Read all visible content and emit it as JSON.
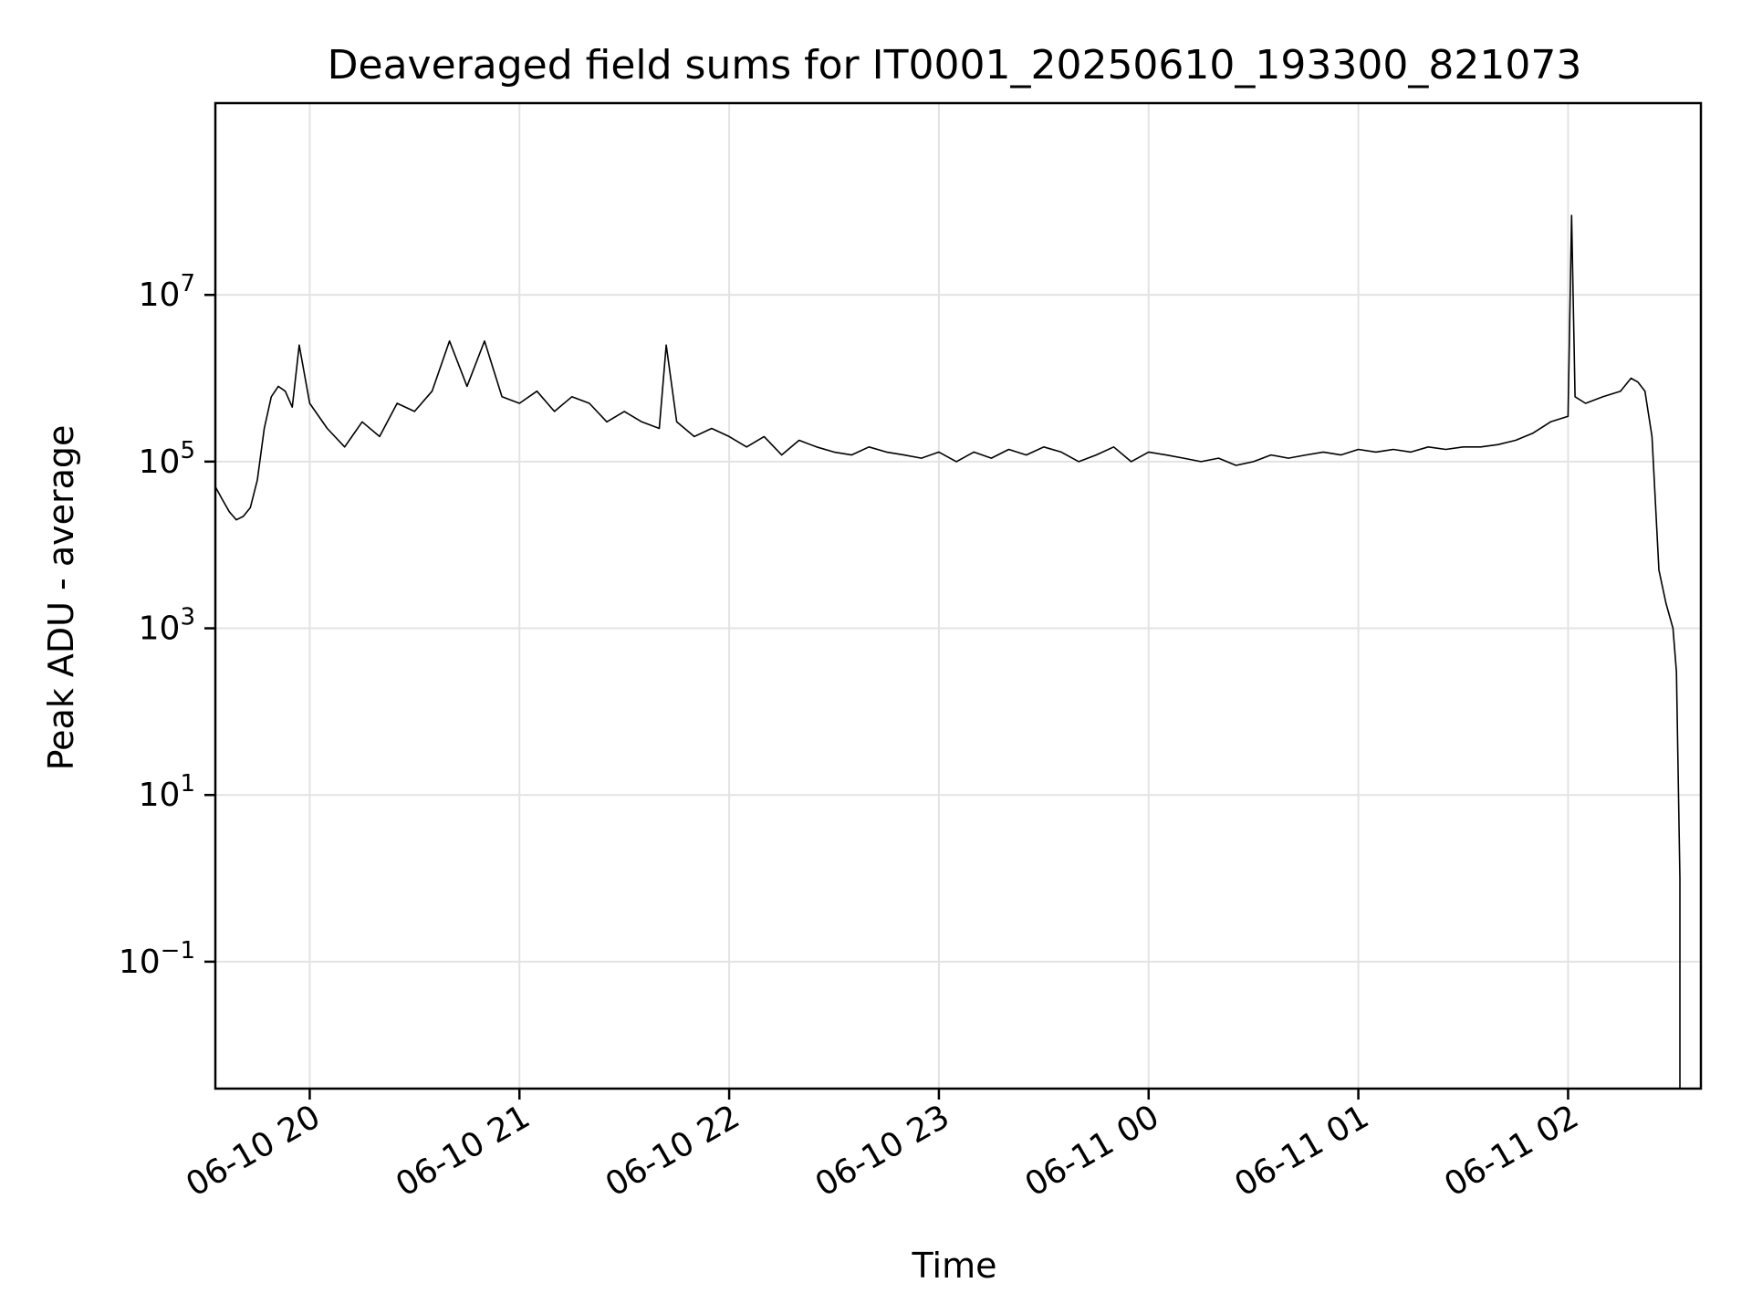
{
  "chart_data": {
    "type": "line",
    "title": "Deaveraged field sums for IT0001_20250610_193300_821073",
    "xlabel": "Time",
    "ylabel": "Peak ADU - average",
    "yscale": "log",
    "grid": true,
    "line_color": "#000000",
    "x_range": [
      "2025-06-10 19:33",
      "2025-06-11 02:38"
    ],
    "ylim": [
      0.003,
      2000000000
    ],
    "x_ticks": [
      {
        "label": "06-10 20",
        "time": "2025-06-10 20:00"
      },
      {
        "label": "06-10 21",
        "time": "2025-06-10 21:00"
      },
      {
        "label": "06-10 22",
        "time": "2025-06-10 22:00"
      },
      {
        "label": "06-10 23",
        "time": "2025-06-10 23:00"
      },
      {
        "label": "06-11 00",
        "time": "2025-06-11 00:00"
      },
      {
        "label": "06-11 01",
        "time": "2025-06-11 01:00"
      },
      {
        "label": "06-11 02",
        "time": "2025-06-11 02:00"
      }
    ],
    "y_ticks": [
      {
        "base": "10",
        "exp": "7",
        "value": 10000000
      },
      {
        "base": "10",
        "exp": "5",
        "value": 100000
      },
      {
        "base": "10",
        "exp": "3",
        "value": 1000
      },
      {
        "base": "10",
        "exp": "1",
        "value": 10
      },
      {
        "base": "10",
        "exp": "−1",
        "value": 0.1
      }
    ],
    "series": [
      {
        "points": [
          [
            "2025-06-10 19:33",
            50000
          ],
          [
            "2025-06-10 19:35",
            35000
          ],
          [
            "2025-06-10 19:37",
            25000
          ],
          [
            "2025-06-10 19:39",
            20000
          ],
          [
            "2025-06-10 19:41",
            22000
          ],
          [
            "2025-06-10 19:43",
            28000
          ],
          [
            "2025-06-10 19:45",
            60000
          ],
          [
            "2025-06-10 19:47",
            250000
          ],
          [
            "2025-06-10 19:49",
            600000
          ],
          [
            "2025-06-10 19:51",
            800000
          ],
          [
            "2025-06-10 19:53",
            700000
          ],
          [
            "2025-06-10 19:55",
            450000
          ],
          [
            "2025-06-10 19:57",
            2500000
          ],
          [
            "2025-06-10 20:00",
            500000
          ],
          [
            "2025-06-10 20:05",
            250000
          ],
          [
            "2025-06-10 20:10",
            150000
          ],
          [
            "2025-06-10 20:15",
            300000
          ],
          [
            "2025-06-10 20:20",
            200000
          ],
          [
            "2025-06-10 20:25",
            500000
          ],
          [
            "2025-06-10 20:30",
            400000
          ],
          [
            "2025-06-10 20:35",
            700000
          ],
          [
            "2025-06-10 20:40",
            2800000
          ],
          [
            "2025-06-10 20:45",
            800000
          ],
          [
            "2025-06-10 20:50",
            2800000
          ],
          [
            "2025-06-10 20:55",
            600000
          ],
          [
            "2025-06-10 21:00",
            500000
          ],
          [
            "2025-06-10 21:05",
            700000
          ],
          [
            "2025-06-10 21:10",
            400000
          ],
          [
            "2025-06-10 21:15",
            600000
          ],
          [
            "2025-06-10 21:20",
            500000
          ],
          [
            "2025-06-10 21:25",
            300000
          ],
          [
            "2025-06-10 21:30",
            400000
          ],
          [
            "2025-06-10 21:35",
            300000
          ],
          [
            "2025-06-10 21:40",
            250000
          ],
          [
            "2025-06-10 21:42",
            2500000
          ],
          [
            "2025-06-10 21:45",
            300000
          ],
          [
            "2025-06-10 21:50",
            200000
          ],
          [
            "2025-06-10 21:55",
            250000
          ],
          [
            "2025-06-10 22:00",
            200000
          ],
          [
            "2025-06-10 22:05",
            150000
          ],
          [
            "2025-06-10 22:10",
            200000
          ],
          [
            "2025-06-10 22:15",
            120000
          ],
          [
            "2025-06-10 22:20",
            180000
          ],
          [
            "2025-06-10 22:25",
            150000
          ],
          [
            "2025-06-10 22:30",
            130000
          ],
          [
            "2025-06-10 22:35",
            120000
          ],
          [
            "2025-06-10 22:40",
            150000
          ],
          [
            "2025-06-10 22:45",
            130000
          ],
          [
            "2025-06-10 22:50",
            120000
          ],
          [
            "2025-06-10 22:55",
            110000
          ],
          [
            "2025-06-10 23:00",
            130000
          ],
          [
            "2025-06-10 23:05",
            100000
          ],
          [
            "2025-06-10 23:10",
            130000
          ],
          [
            "2025-06-10 23:15",
            110000
          ],
          [
            "2025-06-10 23:20",
            140000
          ],
          [
            "2025-06-10 23:25",
            120000
          ],
          [
            "2025-06-10 23:30",
            150000
          ],
          [
            "2025-06-10 23:35",
            130000
          ],
          [
            "2025-06-10 23:40",
            100000
          ],
          [
            "2025-06-10 23:45",
            120000
          ],
          [
            "2025-06-10 23:50",
            150000
          ],
          [
            "2025-06-10 23:55",
            100000
          ],
          [
            "2025-06-11 00:00",
            130000
          ],
          [
            "2025-06-11 00:05",
            120000
          ],
          [
            "2025-06-11 00:10",
            110000
          ],
          [
            "2025-06-11 00:15",
            100000
          ],
          [
            "2025-06-11 00:20",
            110000
          ],
          [
            "2025-06-11 00:25",
            90000
          ],
          [
            "2025-06-11 00:30",
            100000
          ],
          [
            "2025-06-11 00:35",
            120000
          ],
          [
            "2025-06-11 00:40",
            110000
          ],
          [
            "2025-06-11 00:45",
            120000
          ],
          [
            "2025-06-11 00:50",
            130000
          ],
          [
            "2025-06-11 00:55",
            120000
          ],
          [
            "2025-06-11 01:00",
            140000
          ],
          [
            "2025-06-11 01:05",
            130000
          ],
          [
            "2025-06-11 01:10",
            140000
          ],
          [
            "2025-06-11 01:15",
            130000
          ],
          [
            "2025-06-11 01:20",
            150000
          ],
          [
            "2025-06-11 01:25",
            140000
          ],
          [
            "2025-06-11 01:30",
            150000
          ],
          [
            "2025-06-11 01:35",
            150000
          ],
          [
            "2025-06-11 01:40",
            160000
          ],
          [
            "2025-06-11 01:45",
            180000
          ],
          [
            "2025-06-11 01:50",
            220000
          ],
          [
            "2025-06-11 01:55",
            300000
          ],
          [
            "2025-06-11 02:00",
            350000
          ],
          [
            "2025-06-11 02:01",
            90000000
          ],
          [
            "2025-06-11 02:02",
            600000
          ],
          [
            "2025-06-11 02:05",
            500000
          ],
          [
            "2025-06-11 02:10",
            600000
          ],
          [
            "2025-06-11 02:15",
            700000
          ],
          [
            "2025-06-11 02:18",
            1000000
          ],
          [
            "2025-06-11 02:20",
            900000
          ],
          [
            "2025-06-11 02:22",
            700000
          ],
          [
            "2025-06-11 02:24",
            200000
          ],
          [
            "2025-06-11 02:26",
            5000
          ],
          [
            "2025-06-11 02:28",
            2000
          ],
          [
            "2025-06-11 02:30",
            1000
          ],
          [
            "2025-06-11 02:31",
            300
          ],
          [
            "2025-06-11 02:32",
            1
          ],
          [
            "2025-06-11 02:32",
            0.003
          ]
        ]
      }
    ]
  }
}
